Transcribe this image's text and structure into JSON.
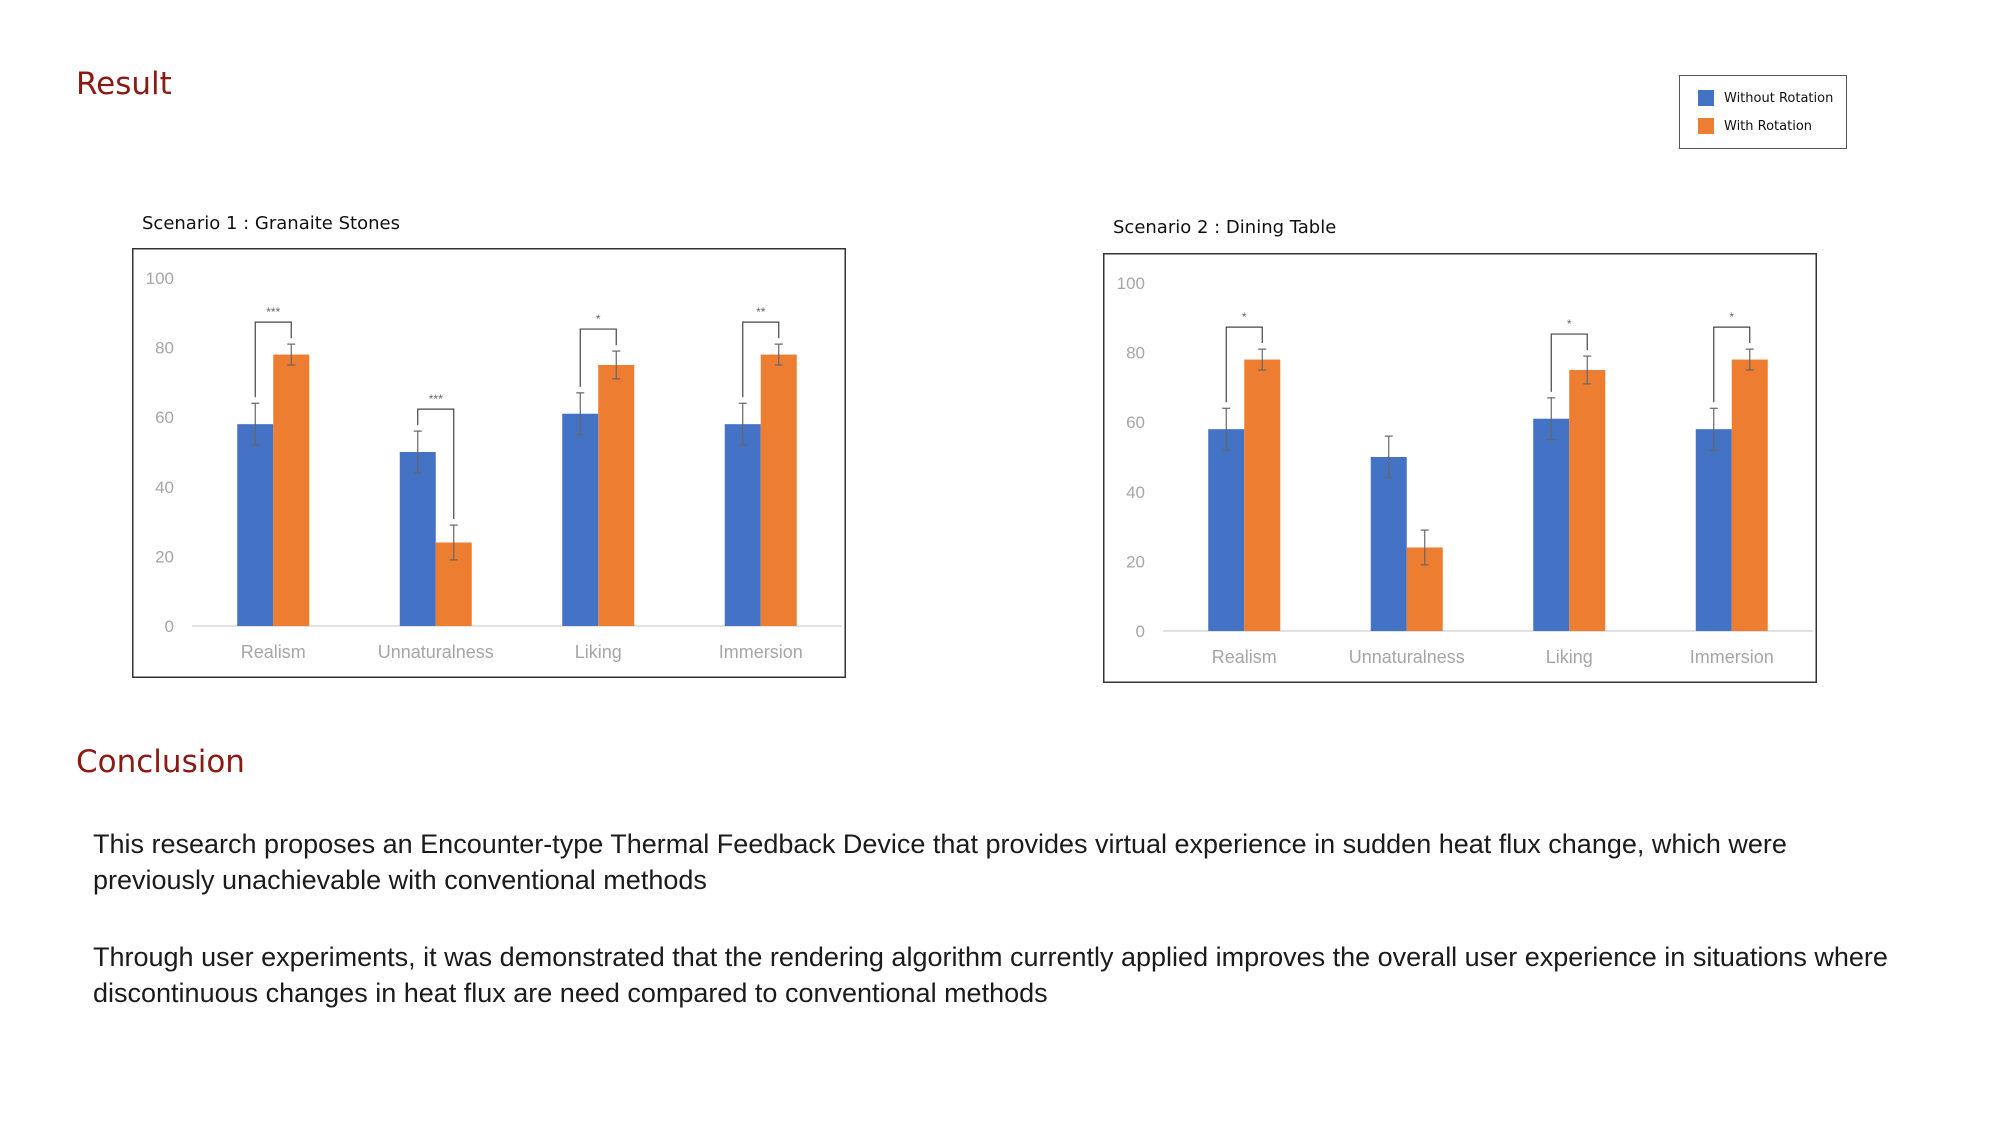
{
  "sections": {
    "result_title": "Result",
    "conclusion_title": "Conclusion"
  },
  "legend": {
    "items": [
      {
        "label": "Without Rotation",
        "color": "#4472c4"
      },
      {
        "label": "With Rotation",
        "color": "#ed7d31"
      }
    ]
  },
  "chart_data": [
    {
      "type": "bar",
      "title": "Scenario 1 : Granaite Stones",
      "xlabel": "",
      "ylabel": "",
      "ylim": [
        0,
        100
      ],
      "yticks": [
        0,
        20,
        40,
        60,
        80,
        100
      ],
      "grid": false,
      "categories": [
        "Realism",
        "Unnaturalness",
        "Liking",
        "Immersion"
      ],
      "series": [
        {
          "name": "Without Rotation",
          "color": "#4472c4",
          "values": [
            58,
            50,
            61,
            58
          ],
          "errors": [
            6,
            6,
            6,
            6
          ]
        },
        {
          "name": "With Rotation",
          "color": "#ed7d31",
          "values": [
            78,
            24,
            75,
            78
          ],
          "errors": [
            3,
            5,
            4,
            3
          ]
        }
      ],
      "significance": [
        "***",
        "***",
        "*",
        "**"
      ]
    },
    {
      "type": "bar",
      "title": "Scenario 2 : Dining Table",
      "xlabel": "",
      "ylabel": "",
      "ylim": [
        0,
        100
      ],
      "yticks": [
        0,
        20,
        40,
        60,
        80,
        100
      ],
      "grid": false,
      "categories": [
        "Realism",
        "Unnaturalness",
        "Liking",
        "Immersion"
      ],
      "series": [
        {
          "name": "Without Rotation",
          "color": "#4472c4",
          "values": [
            58,
            50,
            61,
            58
          ],
          "errors": [
            6,
            6,
            6,
            6
          ]
        },
        {
          "name": "With Rotation",
          "color": "#ed7d31",
          "values": [
            78,
            24,
            75,
            78
          ],
          "errors": [
            3,
            5,
            4,
            3
          ]
        }
      ],
      "significance": [
        "*",
        "",
        "*",
        "*"
      ]
    }
  ],
  "conclusion": {
    "paragraphs": [
      "This research proposes an Encounter-type Thermal Feedback Device that provides virtual experience in sudden heat flux change, which were previously unachievable with conventional methods",
      "Through user experiments, it was demonstrated that the rendering algorithm currently applied improves the overall user experience in situations where discontinuous changes in heat flux are need compared to conventional methods"
    ]
  }
}
